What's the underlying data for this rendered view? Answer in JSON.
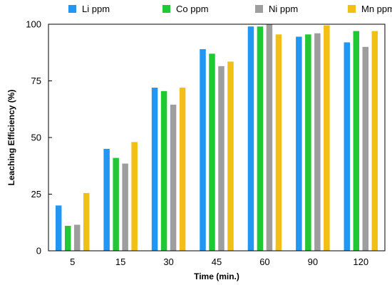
{
  "colors": {
    "Li": "#2196f3",
    "Co": "#20c933",
    "Ni": "#9e9e9e",
    "Mn": "#f2c014",
    "frame": "#000000",
    "background": "#ffffff"
  },
  "chart_data": {
    "type": "bar",
    "title": "",
    "xlabel": "Time (min.)",
    "ylabel": "Leaching Efficiency (%)",
    "categories": [
      "5",
      "15",
      "30",
      "45",
      "60",
      "90",
      "120"
    ],
    "ylim": [
      0,
      100
    ],
    "yticks": [
      "0",
      "25",
      "50",
      "75",
      "100"
    ],
    "grid": false,
    "legend_position": "top",
    "series": [
      {
        "name": "Li ppm",
        "color_key": "Li",
        "values": [
          20,
          45,
          72,
          89,
          99,
          94.5,
          92
        ]
      },
      {
        "name": "Co ppm",
        "color_key": "Co",
        "values": [
          11,
          41,
          70.5,
          87,
          99,
          95.5,
          97
        ]
      },
      {
        "name": "Ni ppm",
        "color_key": "Ni",
        "values": [
          11.5,
          38.5,
          64.5,
          81.5,
          100,
          96,
          90
        ]
      },
      {
        "name": "Mn ppm",
        "color_key": "Mn",
        "values": [
          25.5,
          48,
          72,
          83.5,
          95.5,
          99.5,
          97
        ]
      }
    ]
  }
}
